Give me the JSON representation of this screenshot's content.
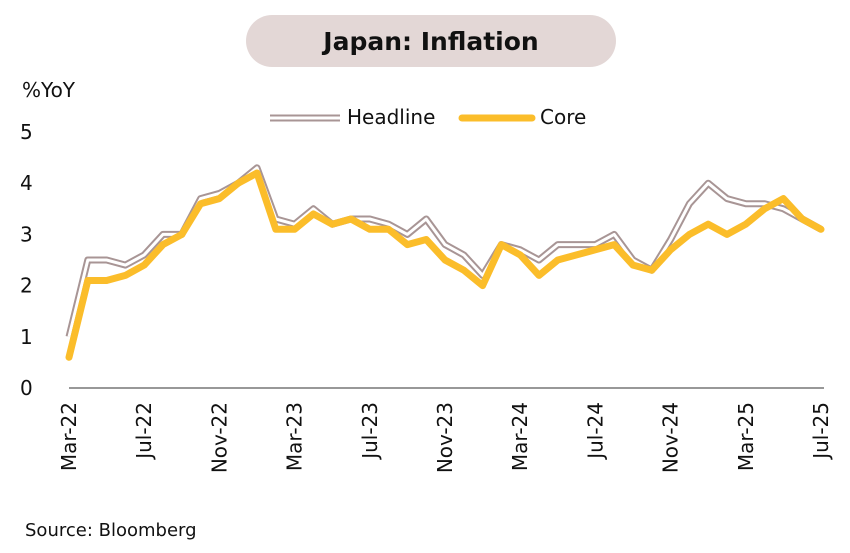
{
  "chart_data": {
    "type": "line",
    "title": "Japan: Inflation",
    "ylabel": "%YoY",
    "source": "Source: Bloomberg",
    "ylim": [
      0,
      5
    ],
    "yticks": [
      "0",
      "1",
      "2",
      "3",
      "4",
      "5"
    ],
    "legend_position": "top-center",
    "grid": false,
    "x": [
      "Mar-22",
      "Apr-22",
      "May-22",
      "Jun-22",
      "Jul-22",
      "Aug-22",
      "Sep-22",
      "Oct-22",
      "Nov-22",
      "Dec-22",
      "Jan-23",
      "Feb-23",
      "Mar-23",
      "Apr-23",
      "May-23",
      "Jun-23",
      "Jul-23",
      "Aug-23",
      "Sep-23",
      "Oct-23",
      "Nov-23",
      "Dec-23",
      "Jan-24",
      "Feb-24",
      "Mar-24",
      "Apr-24",
      "May-24",
      "Jun-24",
      "Jul-24",
      "Aug-24",
      "Sep-24",
      "Oct-24",
      "Nov-24",
      "Dec-24",
      "Jan-25",
      "Feb-25",
      "Mar-25",
      "Apr-25",
      "May-25",
      "Jun-25",
      "Jul-25"
    ],
    "xtick_labels": [
      "Mar-22",
      "Jul-22",
      "Nov-22",
      "Mar-23",
      "Jul-23",
      "Nov-23",
      "Mar-24",
      "Jul-24",
      "Nov-24",
      "Mar-25",
      "Jul-25"
    ],
    "series": [
      {
        "name": "Headline",
        "color": "#a89595",
        "style": "double-outline",
        "values": [
          1.0,
          2.5,
          2.5,
          2.4,
          2.6,
          3.0,
          3.0,
          3.7,
          3.8,
          4.0,
          4.3,
          3.3,
          3.2,
          3.5,
          3.2,
          3.3,
          3.3,
          3.2,
          3.0,
          3.3,
          2.8,
          2.6,
          2.2,
          2.8,
          2.7,
          2.5,
          2.8,
          2.8,
          2.8,
          3.0,
          2.5,
          2.3,
          2.9,
          3.6,
          4.0,
          3.7,
          3.6,
          3.6,
          3.5,
          3.3,
          3.1
        ]
      },
      {
        "name": "Core",
        "color": "#fbbd2a",
        "style": "solid",
        "values": [
          0.6,
          2.1,
          2.1,
          2.2,
          2.4,
          2.8,
          3.0,
          3.6,
          3.7,
          4.0,
          4.2,
          3.1,
          3.1,
          3.4,
          3.2,
          3.3,
          3.1,
          3.1,
          2.8,
          2.9,
          2.5,
          2.3,
          2.0,
          2.8,
          2.6,
          2.2,
          2.5,
          2.6,
          2.7,
          2.8,
          2.4,
          2.3,
          2.7,
          3.0,
          3.2,
          3.0,
          3.2,
          3.5,
          3.7,
          3.3,
          3.1
        ]
      }
    ]
  }
}
